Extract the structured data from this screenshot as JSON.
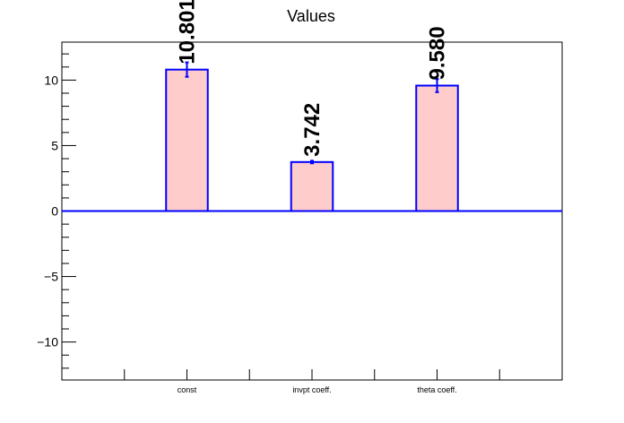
{
  "chart_data": {
    "type": "bar",
    "title": "Values",
    "xlabel": "",
    "ylabel": "",
    "categories": [
      "const",
      "invpt coeff.",
      "theta coeff."
    ],
    "values": [
      10.801,
      3.742,
      9.58
    ],
    "errors": [
      0.55,
      0.1,
      0.5
    ],
    "value_labels": [
      "10.801",
      "3.742",
      "9.580"
    ],
    "ylim": [
      -12.9,
      12.9
    ],
    "yticks_major": [
      -10,
      -5,
      0,
      5,
      10
    ],
    "ytick_labels": [
      "−10",
      "−5",
      "0",
      "5",
      "10"
    ],
    "grid": false,
    "legend": "none",
    "colors": {
      "bar_fill": "#ffcccc",
      "bar_stroke": "#0000ff",
      "baseline": "#0000ff",
      "error_bar": "#0000ff",
      "axis": "#000000"
    }
  }
}
